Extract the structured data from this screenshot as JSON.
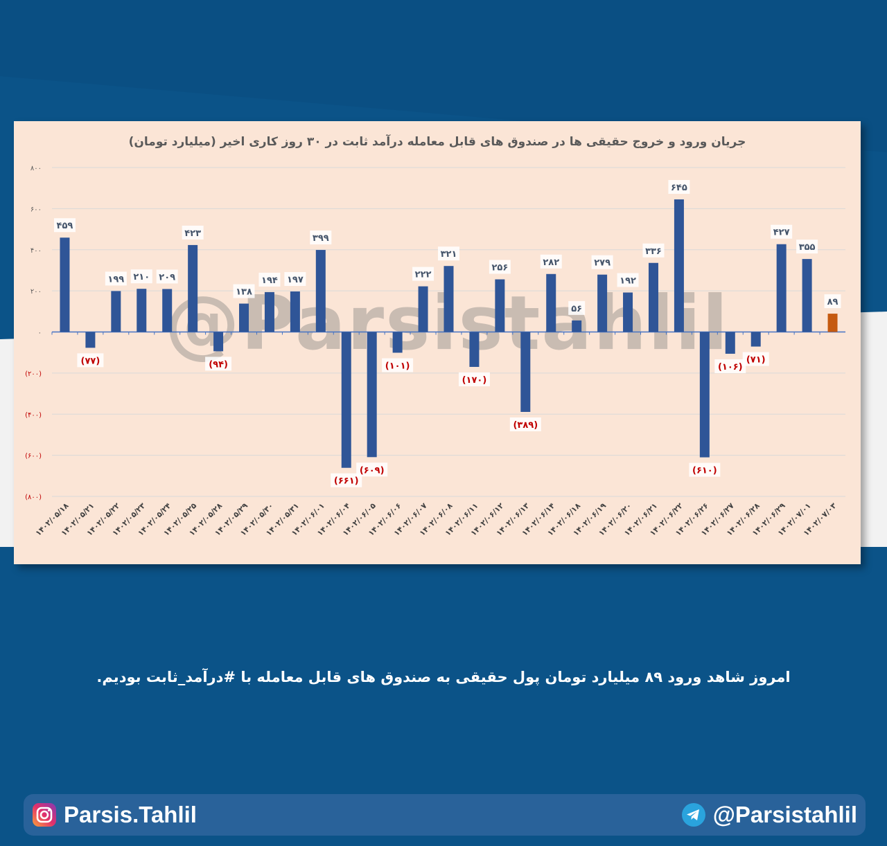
{
  "chart_data": {
    "type": "bar",
    "title": "جریان ورود و خروج حقیقی ها در صندوق های قابل معامله درآمد ثابت در ۳۰ روز کاری اخیر (میلیارد تومان)",
    "ylim": [
      -800,
      800
    ],
    "yticks": [
      800,
      600,
      400,
      200,
      0,
      -200,
      -400,
      -600,
      -800
    ],
    "ytick_labels": [
      "۸۰۰",
      "۶۰۰",
      "۴۰۰",
      "۲۰۰",
      "۰",
      "(۲۰۰)",
      "(۴۰۰)",
      "(۶۰۰)",
      "(۸۰۰)"
    ],
    "grid": true,
    "categories": [
      "۱۴۰۲/۰۵/۱۸",
      "۱۴۰۲/۰۵/۲۱",
      "۱۴۰۲/۰۵/۲۲",
      "۱۴۰۲/۰۵/۲۳",
      "۱۴۰۲/۰۵/۲۴",
      "۱۴۰۲/۰۵/۲۵",
      "۱۴۰۲/۰۵/۲۸",
      "۱۴۰۲/۰۵/۲۹",
      "۱۴۰۲/۰۵/۳۰",
      "۱۴۰۲/۰۵/۳۱",
      "۱۴۰۲/۰۶/۰۱",
      "۱۴۰۲/۰۶/۰۴",
      "۱۴۰۲/۰۶/۰۵",
      "۱۴۰۲/۰۶/۰۶",
      "۱۴۰۲/۰۶/۰۷",
      "۱۴۰۲/۰۶/۰۸",
      "۱۴۰۲/۰۶/۱۱",
      "۱۴۰۲/۰۶/۱۲",
      "۱۴۰۲/۰۶/۱۳",
      "۱۴۰۲/۰۶/۱۴",
      "۱۴۰۲/۰۶/۱۸",
      "۱۴۰۲/۰۶/۱۹",
      "۱۴۰۲/۰۶/۲۰",
      "۱۴۰۲/۰۶/۲۱",
      "۱۴۰۲/۰۶/۲۲",
      "۱۴۰۲/۰۶/۲۶",
      "۱۴۰۲/۰۶/۲۷",
      "۱۴۰۲/۰۶/۲۸",
      "۱۴۰۲/۰۶/۲۹",
      "۱۴۰۲/۰۷/۰۱",
      "۱۴۰۲/۰۷/۰۳"
    ],
    "values": [
      459,
      -77,
      199,
      210,
      209,
      423,
      -94,
      138,
      194,
      197,
      399,
      -661,
      -609,
      -101,
      222,
      321,
      -170,
      256,
      -389,
      282,
      56,
      279,
      192,
      336,
      645,
      -610,
      -106,
      -71,
      427,
      355,
      89
    ],
    "value_labels": [
      "۴۵۹",
      "(۷۷)",
      "۱۹۹",
      "۲۱۰",
      "۲۰۹",
      "۴۲۳",
      "(۹۴)",
      "۱۳۸",
      "۱۹۴",
      "۱۹۷",
      "۳۹۹",
      "(۶۶۱)",
      "(۶۰۹)",
      "(۱۰۱)",
      "۲۲۲",
      "۳۲۱",
      "(۱۷۰)",
      "۲۵۶",
      "(۳۸۹)",
      "۲۸۲",
      "۵۶",
      "۲۷۹",
      "۱۹۲",
      "۳۳۶",
      "۶۴۵",
      "(۶۱۰)",
      "(۱۰۶)",
      "(۷۱)",
      "۴۲۷",
      "۳۵۵",
      "۸۹"
    ],
    "colors": {
      "bar": "#2f5597",
      "latest_bar": "#c55a11",
      "negative_label": "#c00000",
      "positive_label": "#44546a",
      "grid": "#d9d9d9",
      "background": "#fbe5d6"
    }
  },
  "watermark": "@Parsistahlil",
  "caption": "امروز شاهد ورود ۸۹ میلیارد تومان پول حقیقی  به صندوق های قابل معامله با #درآمد_ثابت بودیم.",
  "footer": {
    "instagram": {
      "handle": "Parsis.Tahlil",
      "icon": "instagram-icon"
    },
    "telegram": {
      "handle": "@Parsistahlil",
      "icon": "telegram-icon"
    }
  }
}
